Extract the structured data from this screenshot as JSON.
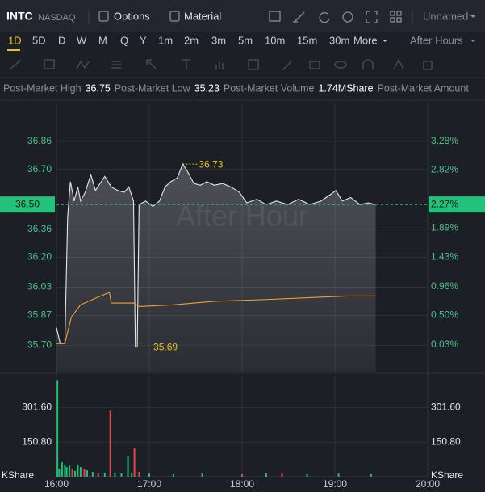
{
  "header": {
    "symbol": "INTC",
    "exchange": "NASDAQ",
    "buttons": [
      "Options",
      "Material"
    ],
    "layout_menu": "Unnamed"
  },
  "periods": [
    "1D",
    "5D",
    "D",
    "W",
    "M",
    "Q",
    "Y",
    "1m",
    "2m",
    "3m",
    "5m",
    "10m",
    "15m",
    "30m"
  ],
  "more": "More",
  "session": "After Hours",
  "stats": [
    {
      "label": "Post-Market High",
      "value": 36.75
    },
    {
      "label": "Post-Market Low",
      "value": 35.23
    },
    {
      "label": "Post-Market Volume",
      "value": "1.74MShare"
    },
    {
      "label": "Post-Market Amount"
    }
  ],
  "chart_data": [
    {
      "type": "line",
      "watermark": "After Hour",
      "series": [
        {
          "color": "#e6e6e6",
          "x": [
            16.0,
            16.04,
            16.09,
            16.12,
            16.15,
            16.19,
            16.23,
            16.26,
            16.31,
            16.37,
            16.42,
            16.47,
            16.52,
            16.59,
            16.66,
            16.73,
            16.78,
            16.83,
            16.85,
            16.87,
            16.89,
            16.96,
            17.04,
            17.11,
            17.17,
            17.23,
            17.3,
            17.36,
            17.41,
            17.48,
            17.55,
            17.62,
            17.7,
            17.79,
            17.88,
            17.97,
            18.05,
            18.16,
            18.26,
            18.37,
            18.49,
            18.61,
            18.73,
            18.85,
            18.96,
            19.01,
            19.08,
            19.17,
            19.27,
            19.36,
            19.44
          ],
          "values": [
            35.8,
            35.71,
            35.71,
            36.43,
            36.63,
            36.52,
            36.6,
            36.52,
            36.57,
            36.67,
            36.58,
            36.62,
            36.66,
            36.6,
            36.58,
            36.57,
            36.6,
            36.52,
            35.69,
            35.69,
            36.5,
            36.52,
            36.49,
            36.52,
            36.6,
            36.63,
            36.65,
            36.73,
            36.69,
            36.62,
            36.61,
            36.63,
            36.61,
            36.62,
            36.6,
            36.57,
            36.51,
            36.53,
            36.5,
            36.52,
            36.5,
            36.53,
            36.5,
            36.52,
            36.56,
            36.58,
            36.52,
            36.54,
            36.5,
            36.51,
            36.5
          ]
        },
        {
          "color": "#f0a030",
          "x": [
            16.0,
            16.09,
            16.16,
            16.26,
            16.43,
            16.57,
            16.59,
            16.83,
            16.89,
            17.26,
            17.7,
            18.26,
            18.7,
            19.13,
            19.44
          ],
          "values": [
            35.71,
            35.71,
            35.86,
            35.93,
            35.97,
            36.0,
            35.94,
            35.94,
            35.92,
            35.93,
            35.95,
            35.96,
            35.97,
            35.98,
            35.98
          ]
        }
      ],
      "area_color": "#ffffff",
      "xlim": [
        16,
        20
      ],
      "xticks": [
        16,
        17,
        18,
        19,
        20
      ],
      "ylim": [
        35.55,
        37.02
      ],
      "yticks": [
        {
          "value": 36.86,
          "label": "36.86"
        },
        {
          "value": 36.7,
          "label": "36.70"
        },
        {
          "value": 36.36,
          "label": "36.36"
        },
        {
          "value": 36.2,
          "label": "36.20"
        },
        {
          "value": 36.03,
          "label": "36.03"
        },
        {
          "value": 35.87,
          "label": "35.87"
        },
        {
          "value": 35.7,
          "label": "35.70"
        }
      ],
      "y2lim": [
        -0.4,
        3.73
      ],
      "y2ticks": [
        {
          "value": 3.28,
          "label": "3.28%"
        },
        {
          "value": 2.82,
          "label": "2.82%"
        },
        {
          "value": 1.89,
          "label": "1.89%"
        },
        {
          "value": 1.43,
          "label": "1.43%"
        },
        {
          "value": 0.96,
          "label": "0.96%"
        },
        {
          "value": 0.5,
          "label": "0.50%"
        },
        {
          "value": 0.03,
          "label": "0.03%"
        }
      ],
      "last_price": {
        "value": 36.5,
        "label": "36.50"
      },
      "last_change": {
        "value": 2.27,
        "label": "2.27%"
      },
      "last_color": "#22c27a",
      "annotations": [
        {
          "x": 17.36,
          "value": 36.73
        },
        {
          "x": 16.87,
          "value": 35.69
        }
      ],
      "annotation_color": "#e8c21e",
      "grid": true
    },
    {
      "type": "bar",
      "unit_label": "KShare",
      "x": [
        16.01,
        16.03,
        16.06,
        16.09,
        16.11,
        16.14,
        16.17,
        16.2,
        16.23,
        16.26,
        16.3,
        16.33,
        16.39,
        16.45,
        16.52,
        16.58,
        16.63,
        16.7,
        16.77,
        16.81,
        16.84,
        16.89,
        17.0,
        17.26,
        17.57,
        18.0,
        18.26,
        18.43,
        18.7,
        19.04,
        19.39
      ],
      "values": [
        421,
        35,
        63,
        53,
        42,
        49,
        35,
        25,
        53,
        42,
        35,
        28,
        21,
        14,
        18,
        288,
        18,
        14,
        88,
        18,
        123,
        21,
        14,
        11,
        14,
        11,
        14,
        18,
        11,
        14,
        11
      ],
      "colors": [
        "#1fbf75",
        "#1fbf75",
        "#1fbf75",
        "#1fbf75",
        "#1fbf75",
        "#1fbf75",
        "#e0494a",
        "#1fbf75",
        "#1fbf75",
        "#1fbf75",
        "#e0494a",
        "#1fbf75",
        "#1fbf75",
        "#e0494a",
        "#1fbf75",
        "#e0494a",
        "#1fbf75",
        "#1fbf75",
        "#1fbf75",
        "#1fbf75",
        "#e0494a",
        "#e0494a",
        "#1fbf75",
        "#1fbf75",
        "#1fbf75",
        "#e0494a",
        "#1fbf75",
        "#e0494a",
        "#1fbf75",
        "#1fbf75",
        "#1fbf75"
      ],
      "xlim": [
        16,
        20
      ],
      "xticks": [
        {
          "value": 16,
          "label": "16:00"
        },
        {
          "value": 17,
          "label": "17:00"
        },
        {
          "value": 18,
          "label": "18:00"
        },
        {
          "value": 19,
          "label": "19:00"
        },
        {
          "value": 20,
          "label": "20:00"
        }
      ],
      "ylim": [
        0,
        440
      ],
      "yticks": [
        {
          "value": 301.6,
          "label": "301.60"
        },
        {
          "value": 150.8,
          "label": "150.80"
        }
      ],
      "grid": true
    }
  ]
}
